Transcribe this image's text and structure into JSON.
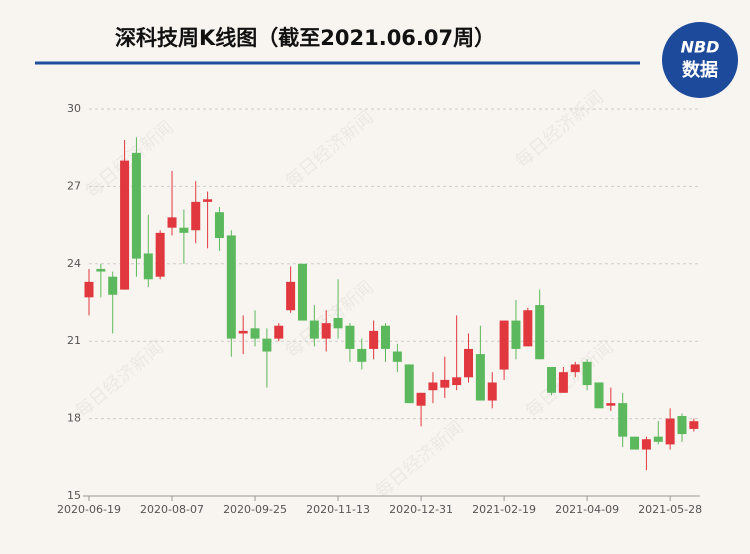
{
  "chart_data": {
    "type": "candlestick",
    "title": "深科技周K线图（截至2021.06.07周）",
    "brand": [
      "NBD",
      "数据"
    ],
    "watermark": "每日经济新闻",
    "categories": [
      "2020-06-19",
      null,
      null,
      null,
      null,
      null,
      null,
      "2020-08-07",
      null,
      null,
      null,
      null,
      null,
      null,
      "2020-09-25",
      null,
      null,
      null,
      null,
      null,
      null,
      "2020-11-13",
      null,
      null,
      null,
      null,
      null,
      null,
      "2020-12-31",
      null,
      null,
      null,
      null,
      null,
      null,
      "2021-02-19",
      null,
      null,
      null,
      null,
      null,
      null,
      "2021-04-09",
      null,
      null,
      null,
      null,
      null,
      null,
      "2021-05-28",
      null,
      null
    ],
    "open": [
      22.7,
      23.8,
      23.5,
      23.0,
      28.3,
      24.4,
      23.5,
      25.4,
      25.4,
      25.3,
      26.4,
      26.0,
      25.1,
      21.3,
      21.5,
      21.1,
      21.1,
      22.2,
      24.0,
      21.8,
      21.1,
      21.9,
      21.6,
      20.7,
      20.7,
      21.6,
      20.6,
      20.1,
      18.5,
      19.1,
      19.2,
      19.3,
      19.6,
      20.5,
      18.7,
      19.9,
      21.8,
      20.8,
      22.4,
      20.0,
      19.0,
      19.8,
      20.2,
      19.4,
      18.5,
      18.6,
      17.3,
      16.8,
      17.3,
      17.0,
      18.1,
      17.6
    ],
    "high": [
      23.8,
      24.0,
      23.7,
      28.8,
      28.9,
      25.9,
      25.3,
      27.6,
      26.1,
      27.2,
      26.8,
      26.2,
      25.3,
      22.0,
      22.2,
      21.5,
      21.7,
      23.9,
      24.0,
      22.4,
      22.2,
      23.4,
      21.7,
      21.1,
      21.8,
      21.7,
      20.9,
      20.1,
      19.0,
      19.8,
      20.4,
      22.0,
      21.3,
      21.6,
      19.8,
      21.8,
      22.6,
      22.3,
      23.0,
      20.0,
      20.0,
      20.2,
      20.3,
      19.4,
      19.2,
      19.0,
      17.3,
      17.3,
      17.9,
      18.4,
      18.2,
      18.0
    ],
    "low": [
      22.0,
      22.7,
      21.3,
      23.0,
      23.5,
      23.1,
      23.4,
      25.1,
      24.0,
      24.8,
      24.6,
      24.5,
      20.4,
      20.5,
      20.8,
      19.2,
      21.0,
      22.1,
      21.8,
      20.8,
      20.6,
      21.1,
      20.2,
      19.9,
      20.3,
      20.2,
      19.8,
      18.6,
      17.7,
      18.6,
      18.8,
      19.1,
      19.4,
      18.7,
      18.4,
      19.5,
      20.3,
      20.8,
      20.3,
      18.9,
      19.0,
      19.6,
      19.1,
      18.4,
      18.3,
      16.9,
      16.8,
      16.0,
      17.0,
      16.8,
      17.1,
      17.5
    ],
    "close": [
      23.3,
      23.7,
      22.8,
      28.0,
      24.2,
      23.4,
      25.2,
      25.8,
      25.2,
      26.4,
      26.5,
      25.0,
      21.1,
      21.4,
      21.1,
      20.6,
      21.6,
      23.3,
      21.8,
      21.1,
      21.7,
      21.5,
      20.7,
      20.2,
      21.4,
      20.7,
      20.2,
      18.6,
      19.0,
      19.4,
      19.5,
      19.6,
      20.7,
      18.7,
      19.4,
      21.8,
      20.7,
      22.2,
      20.3,
      19.0,
      19.8,
      20.1,
      19.3,
      18.4,
      18.6,
      17.3,
      16.8,
      17.2,
      17.1,
      18.0,
      17.4,
      17.9
    ],
    "up_color": "#e0383e",
    "down_color": "#5cb85c",
    "ylim": [
      15,
      30
    ],
    "yticks": [
      15,
      18,
      21,
      24,
      27,
      30
    ],
    "grid": true
  }
}
